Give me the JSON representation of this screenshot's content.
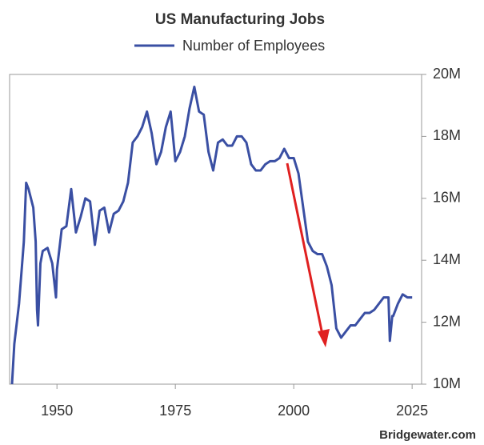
{
  "chart_data": {
    "type": "line",
    "title": "US Manufacturing Jobs",
    "source": "Bridgewater.com",
    "x": [
      1940.5,
      1941,
      1942,
      1943,
      1943.5,
      1944,
      1945,
      1945.5,
      1945.8,
      1946,
      1946.5,
      1947,
      1948,
      1949,
      1949.8,
      1950,
      1951,
      1952,
      1953,
      1954,
      1955,
      1956,
      1957,
      1958,
      1959,
      1960,
      1961,
      1962,
      1963,
      1964,
      1965,
      1966,
      1967,
      1968,
      1969,
      1970,
      1971,
      1972,
      1973,
      1974,
      1975,
      1976,
      1977,
      1978,
      1979,
      1980,
      1981,
      1982,
      1983,
      1984,
      1985,
      1986,
      1987,
      1988,
      1989,
      1990,
      1991,
      1992,
      1993,
      1994,
      1995,
      1996,
      1997,
      1998,
      1999,
      2000,
      2001,
      2002,
      2003,
      2004,
      2005,
      2006,
      2007,
      2008,
      2009,
      2010,
      2011,
      2012,
      2013,
      2014,
      2015,
      2016,
      2017,
      2018,
      2019,
      2020,
      2020.3,
      2020.8,
      2021,
      2022,
      2023,
      2024,
      2025
    ],
    "series": [
      {
        "name": "Number of Employees",
        "color": "#3a4fa3",
        "values": [
          10.0,
          11.3,
          12.6,
          14.6,
          16.5,
          16.3,
          15.7,
          14.6,
          12.4,
          11.9,
          13.9,
          14.3,
          14.4,
          13.9,
          12.8,
          13.7,
          15.0,
          15.1,
          16.3,
          14.9,
          15.4,
          16.0,
          15.9,
          14.5,
          15.6,
          15.7,
          14.9,
          15.5,
          15.6,
          15.9,
          16.5,
          17.8,
          18.0,
          18.3,
          18.8,
          18.1,
          17.1,
          17.5,
          18.3,
          18.8,
          17.2,
          17.5,
          18.0,
          18.9,
          19.6,
          18.8,
          18.7,
          17.5,
          16.9,
          17.8,
          17.9,
          17.7,
          17.7,
          18.0,
          18.0,
          17.8,
          17.1,
          16.9,
          16.9,
          17.1,
          17.2,
          17.2,
          17.3,
          17.6,
          17.3,
          17.3,
          16.8,
          15.7,
          14.6,
          14.3,
          14.2,
          14.2,
          13.8,
          13.2,
          11.8,
          11.5,
          11.7,
          11.9,
          11.9,
          12.1,
          12.3,
          12.3,
          12.4,
          12.6,
          12.8,
          12.8,
          11.4,
          12.2,
          12.2,
          12.6,
          12.9,
          12.8,
          12.8
        ]
      }
    ],
    "xlim": [
      1940,
      2027
    ],
    "xticks": [
      1950,
      1975,
      2000,
      2025
    ],
    "ylim": [
      10,
      20
    ],
    "yticks": [
      {
        "value": 10,
        "label": "10M"
      },
      {
        "value": 12,
        "label": "12M"
      },
      {
        "value": 14,
        "label": "14M"
      },
      {
        "value": 16,
        "label": "16M"
      },
      {
        "value": 18,
        "label": "18M"
      },
      {
        "value": 20,
        "label": "20M"
      }
    ],
    "grid": false
  }
}
